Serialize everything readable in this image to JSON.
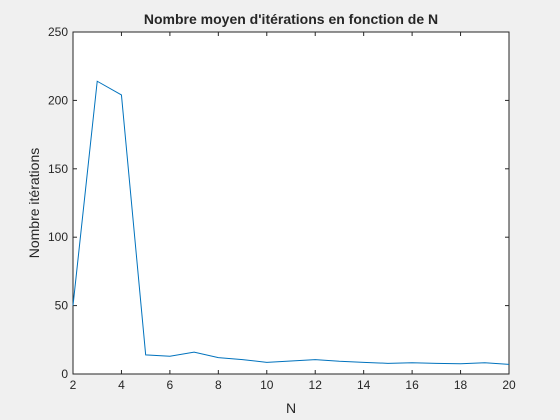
{
  "chart_data": {
    "type": "line",
    "title": "Nombre moyen d'itérations en fonction de N",
    "xlabel": "N",
    "ylabel": "Nombre itérations",
    "xlim": [
      2,
      20
    ],
    "ylim": [
      0,
      250
    ],
    "xticks": [
      2,
      4,
      6,
      8,
      10,
      12,
      14,
      16,
      18,
      20
    ],
    "yticks": [
      0,
      50,
      100,
      150,
      200,
      250
    ],
    "grid": false,
    "series": [
      {
        "color": "#0072bd",
        "x": [
          2,
          3,
          4,
          5,
          6,
          7,
          8,
          9,
          10,
          11,
          12,
          13,
          14,
          15,
          16,
          17,
          18,
          19,
          20
        ],
        "y": [
          50,
          214,
          204,
          14,
          13,
          16,
          12,
          10.5,
          8.5,
          9.5,
          10.5,
          9.3,
          8.5,
          7.8,
          8.2,
          7.8,
          7.5,
          8.2,
          7
        ]
      }
    ]
  }
}
